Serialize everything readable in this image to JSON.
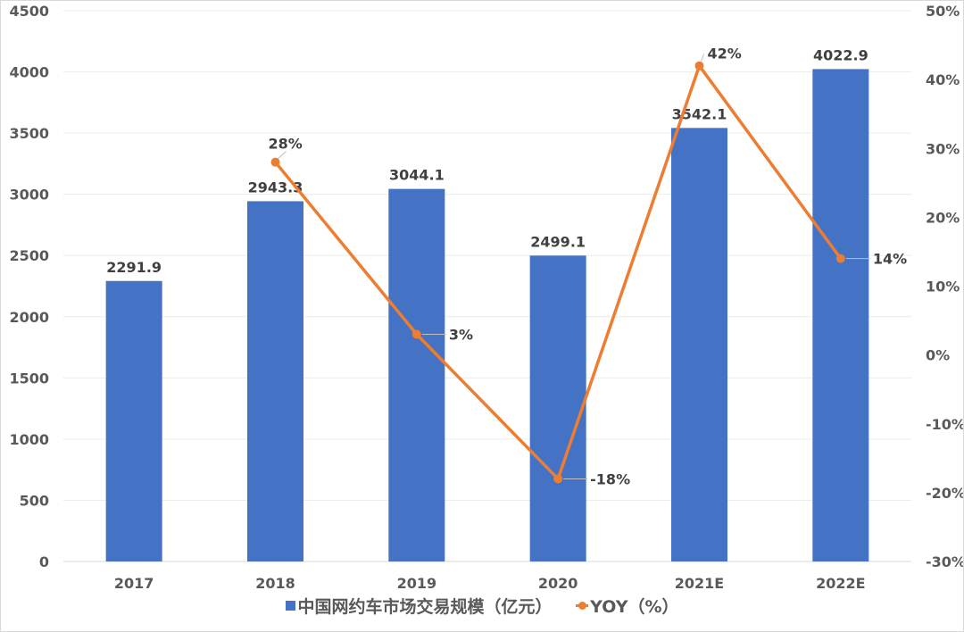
{
  "chart_data": {
    "type": "bar+line",
    "title": "",
    "categories": [
      "2017",
      "2018",
      "2019",
      "2020",
      "2021E",
      "2022E"
    ],
    "series": [
      {
        "name": "中国网约车市场交易规模（亿元）",
        "type": "bar",
        "axis": "left",
        "color": "#4472C4",
        "values": [
          2291.9,
          2943.3,
          3044.1,
          2499.1,
          3542.1,
          4022.9
        ],
        "labels": [
          "2291.9",
          "2943.3",
          "3044.1",
          "2499.1",
          "3542.1",
          "4022.9"
        ]
      },
      {
        "name": "YOY（%）",
        "type": "line",
        "axis": "right",
        "color": "#ED7D31",
        "values": [
          null,
          28,
          3,
          -18,
          42,
          14
        ],
        "labels": [
          "",
          "28%",
          "3%",
          "-18%",
          "42%",
          "14%"
        ]
      }
    ],
    "left_axis": {
      "range": [
        0,
        4500
      ],
      "ticks": [
        "0",
        "500",
        "1000",
        "1500",
        "2000",
        "2500",
        "3000",
        "3500",
        "4000",
        "4500"
      ]
    },
    "right_axis": {
      "range": [
        -30,
        50
      ],
      "ticks": [
        "-30%",
        "-20%",
        "-10%",
        "0%",
        "10%",
        "20%",
        "30%",
        "40%",
        "50%"
      ]
    },
    "xlabel": "",
    "ylabel": "",
    "grid": true,
    "legend_position": "bottom"
  },
  "legend": {
    "bar_label": "中国网约车市场交易规模（亿元）",
    "line_label": "YOY（%）"
  }
}
